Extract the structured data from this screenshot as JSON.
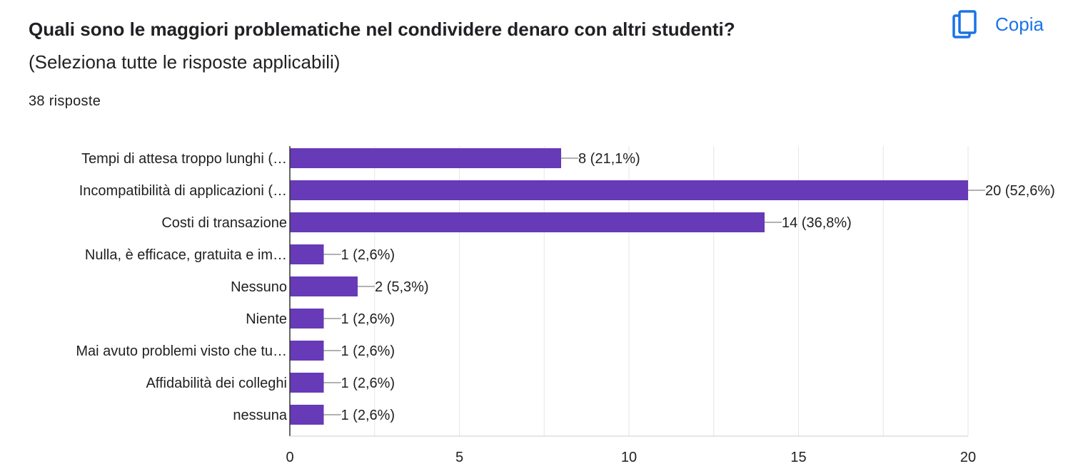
{
  "question": {
    "title": "Quali sono le maggiori problematiche nel condividere denaro con altri studenti?",
    "subtitle": "(Seleziona tutte le risposte applicabili)",
    "responses": "38 risposte"
  },
  "toolbar": {
    "copy_label": "Copia",
    "copy_icon": "copy-icon"
  },
  "colors": {
    "bar": "#673ab7",
    "accent": "#1a73e8",
    "grid": "#e6e6e6",
    "axis": "#333333",
    "text": "#202124"
  },
  "chart_data": {
    "type": "bar",
    "orientation": "horizontal",
    "categories": [
      "Tempi di attesa troppo lunghi (…",
      "Incompatibilità di applicazioni (…",
      "Costi di transazione",
      "Nulla, è efficace, gratuita e im…",
      "Nessuno",
      "Niente",
      "Mai avuto problemi visto che tu…",
      "Affidabilità dei colleghi",
      "nessuna"
    ],
    "values": [
      8,
      20,
      14,
      1,
      2,
      1,
      1,
      1,
      1
    ],
    "data_labels": [
      "8 (21,1%)",
      "20 (52,6%)",
      "14 (36,8%)",
      "1 (2,6%)",
      "2 (5,3%)",
      "1 (2,6%)",
      "1 (2,6%)",
      "1 (2,6%)",
      "1 (2,6%)"
    ],
    "xticks": [
      "0",
      "5",
      "10",
      "15",
      "20"
    ],
    "xlim": [
      0,
      20
    ],
    "grid": true,
    "legend": "none"
  }
}
